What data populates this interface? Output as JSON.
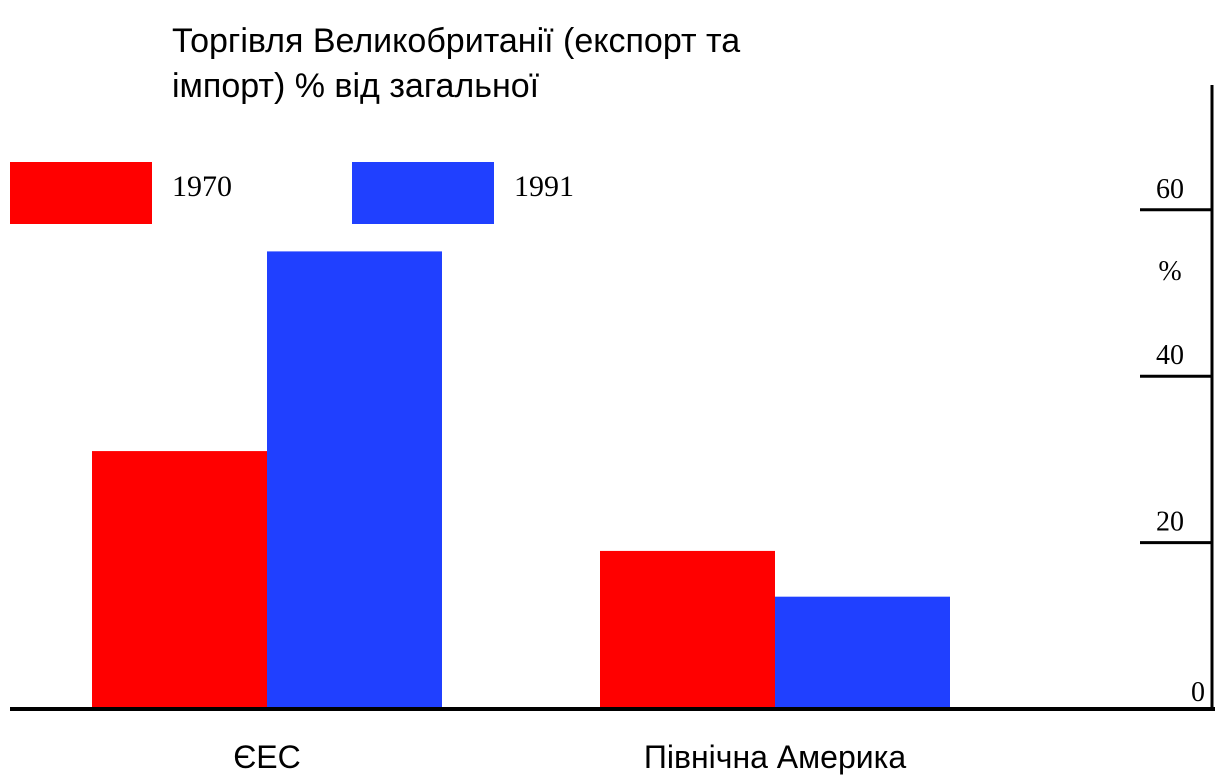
{
  "chart_data": {
    "type": "bar",
    "title": [
      "Торгівля Великобританії (експорт та",
      "імпорт) % від загальної"
    ],
    "y_label": "%",
    "categories": [
      "ЄЕС",
      "Північна Америка"
    ],
    "series": [
      {
        "name": "1970",
        "color": "#ff0000",
        "values": [
          31,
          19
        ]
      },
      {
        "name": "1991",
        "color": "#2040ff",
        "values": [
          55,
          13.5
        ]
      }
    ],
    "ylim": [
      0,
      75
    ],
    "yticks": [
      0,
      20,
      40,
      60
    ]
  }
}
